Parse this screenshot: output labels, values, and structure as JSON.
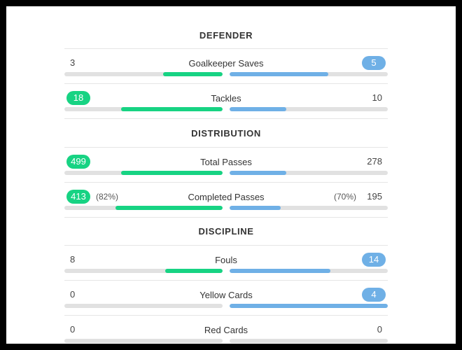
{
  "sections": {
    "defender": {
      "title": "DEFENDER",
      "stats": [
        {
          "label": "Goalkeeper Saves",
          "left": "3",
          "right": "5",
          "left_fill": 0.375,
          "right_fill": 0.625,
          "highlight": "right"
        },
        {
          "label": "Tackles",
          "left": "18",
          "right": "10",
          "left_fill": 0.643,
          "right_fill": 0.357,
          "highlight": "left"
        }
      ]
    },
    "distribution": {
      "title": "DISTRIBUTION",
      "stats": [
        {
          "label": "Total Passes",
          "left": "499",
          "right": "278",
          "left_fill": 0.642,
          "right_fill": 0.358,
          "highlight": "left"
        },
        {
          "label": "Completed Passes",
          "left": "413",
          "right": "195",
          "left_pct": "(82%)",
          "right_pct": "(70%)",
          "left_fill": 0.679,
          "right_fill": 0.321,
          "highlight": "left"
        }
      ]
    },
    "discipline": {
      "title": "DISCIPLINE",
      "stats": [
        {
          "label": "Fouls",
          "left": "8",
          "right": "14",
          "left_fill": 0.364,
          "right_fill": 0.636,
          "highlight": "right"
        },
        {
          "label": "Yellow Cards",
          "left": "0",
          "right": "4",
          "left_fill": 0,
          "right_fill": 1,
          "highlight": "right"
        },
        {
          "label": "Red Cards",
          "left": "0",
          "right": "0",
          "left_fill": 0,
          "right_fill": 0,
          "highlight": "none"
        }
      ]
    }
  },
  "colors": {
    "left_team": "#17d383",
    "right_team": "#6fb0e6",
    "track": "#e1e1e1"
  }
}
